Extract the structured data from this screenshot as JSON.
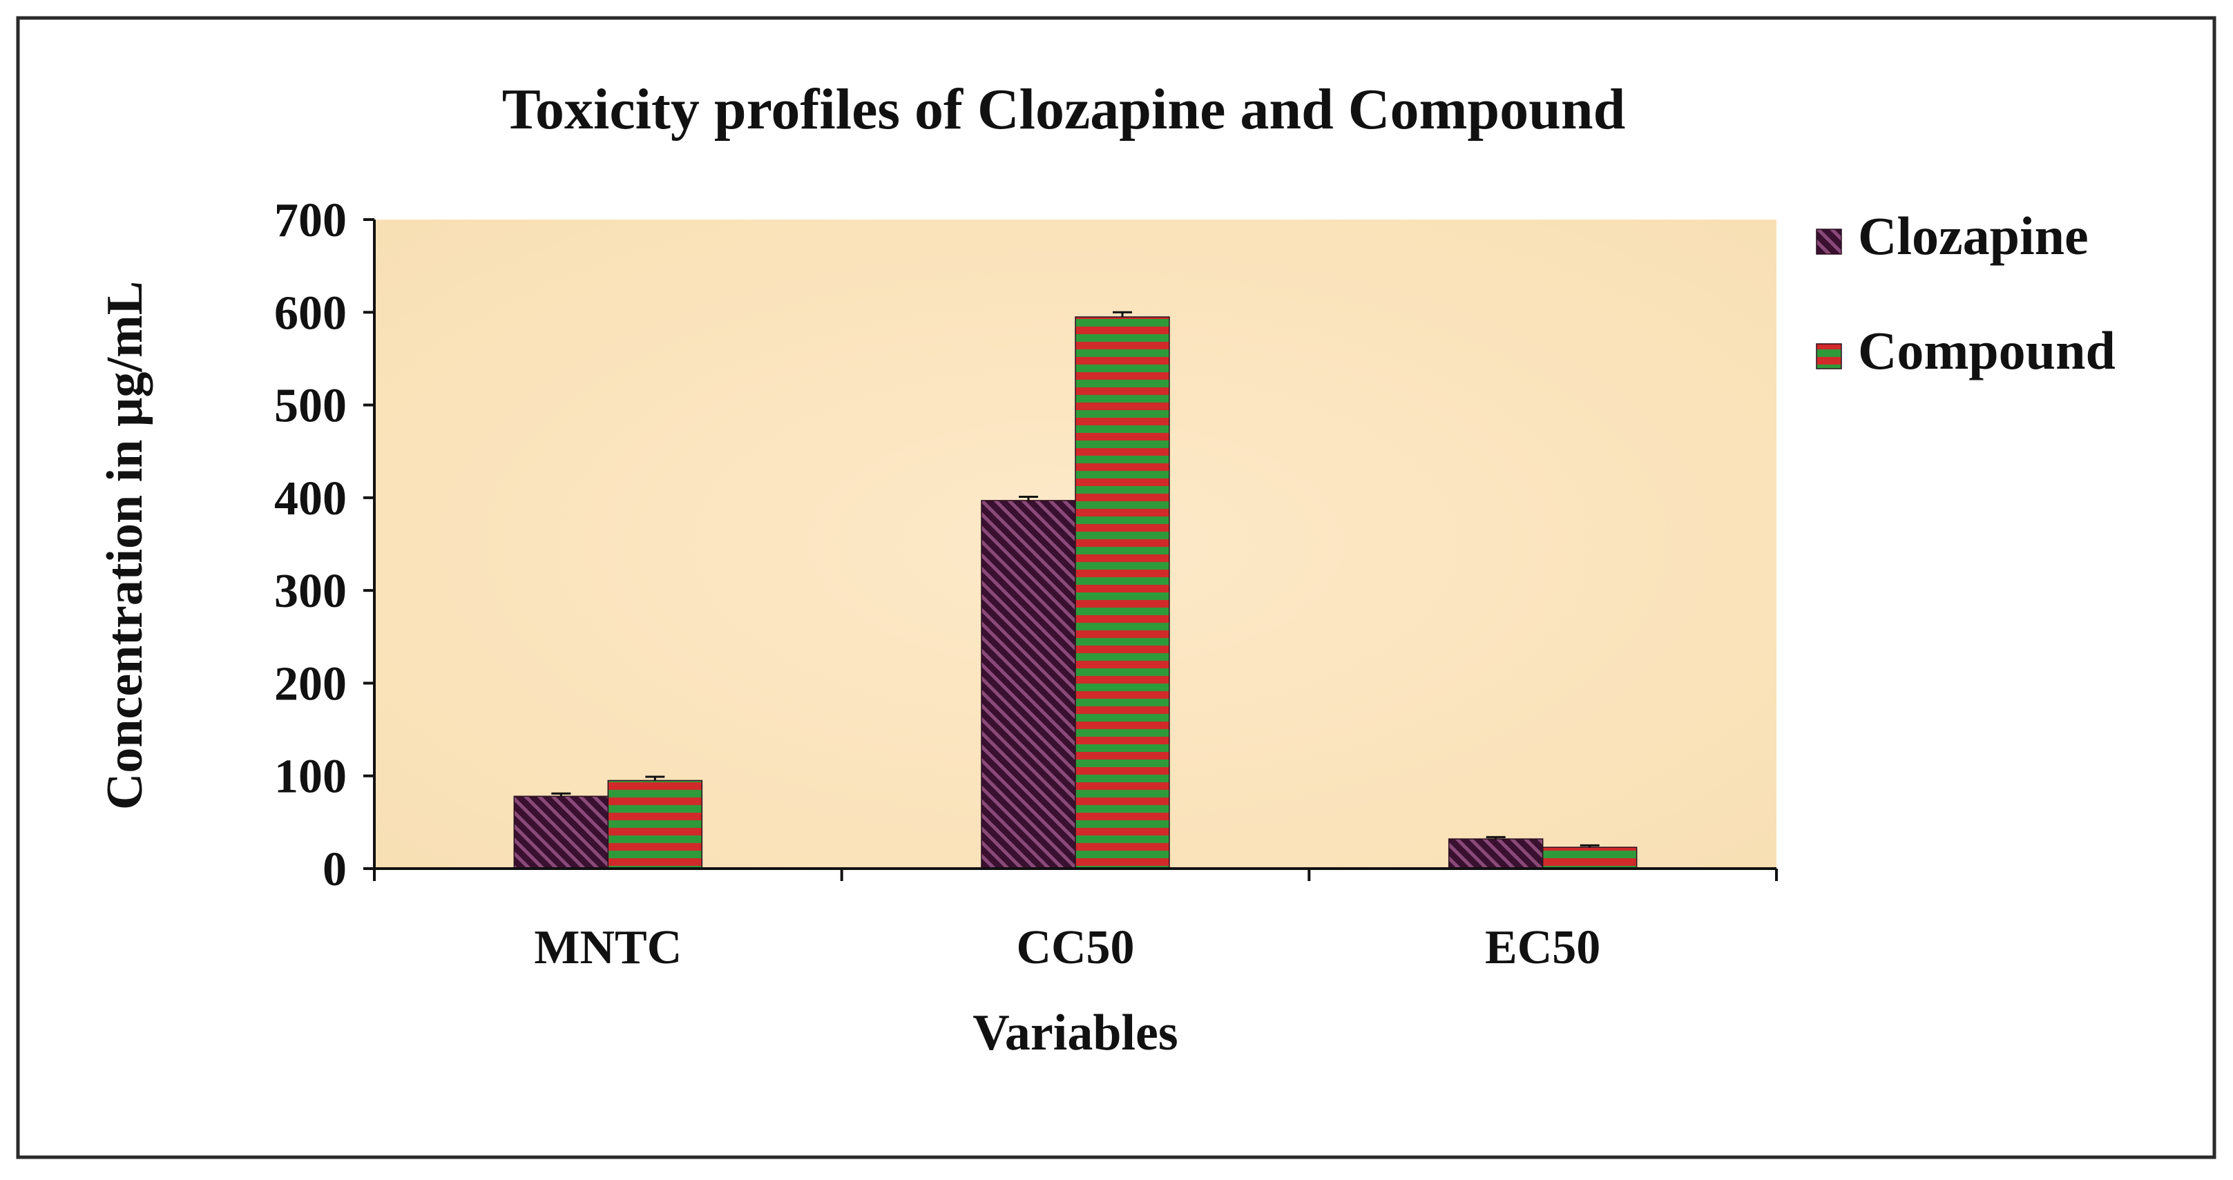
{
  "chart_data": {
    "type": "bar",
    "title": "Toxicity profiles of Clozapine and Compound",
    "xlabel": "Variables",
    "ylabel": "Concentration  in µg/mL",
    "categories": [
      "MNTC",
      "CC50",
      "EC50"
    ],
    "series": [
      {
        "name": "Clozapine",
        "values": [
          78,
          397,
          32
        ],
        "errors": [
          3,
          4,
          2
        ],
        "color": "#4a1838",
        "pattern": "diagonal-hatch"
      },
      {
        "name": "Compound",
        "values": [
          95,
          595,
          23
        ],
        "errors": [
          4,
          5,
          2
        ],
        "color": "#c62e2e",
        "pattern": "horizontal-stripes"
      }
    ],
    "ylim": [
      0,
      700
    ],
    "yticks": [
      0,
      100,
      200,
      300,
      400,
      500,
      600,
      700
    ],
    "grid": false,
    "legend": "right",
    "plot_background": "#fbe6c4",
    "frame_color": "#222222"
  }
}
